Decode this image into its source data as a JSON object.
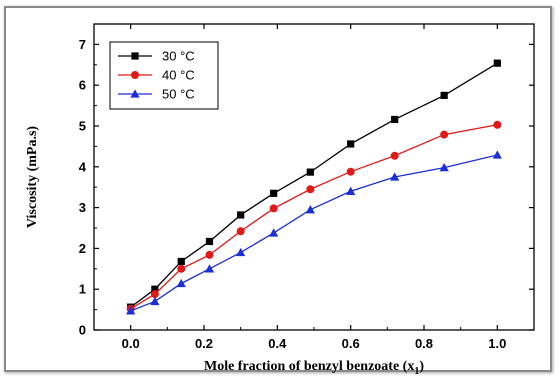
{
  "chart_data": {
    "type": "line",
    "xlabel": "Mole fraction of benzyl benzoate (x",
    "xlabel_sub": "1",
    "xlabel_close": ")",
    "ylabel": "Viscosity (mPa.s)",
    "xlim": [
      -0.1,
      1.1
    ],
    "ylim": [
      0,
      7.5
    ],
    "x_ticks": [
      0.0,
      0.2,
      0.4,
      0.6,
      0.8,
      1.0
    ],
    "x_tick_labels": [
      "0.0",
      "0.2",
      "0.4",
      "0.6",
      "0.8",
      "1.0"
    ],
    "y_ticks": [
      0,
      1,
      2,
      3,
      4,
      5,
      6,
      7
    ],
    "y_tick_labels": [
      "0",
      "1",
      "2",
      "3",
      "4",
      "5",
      "6",
      "7"
    ],
    "grid": false,
    "legend_position": "top-left",
    "series": [
      {
        "name": "30 °C",
        "color": "#000000",
        "marker": "square",
        "x": [
          0.0,
          0.066,
          0.138,
          0.215,
          0.3,
          0.39,
          0.49,
          0.6,
          0.72,
          0.855,
          1.0
        ],
        "y": [
          0.56,
          1.0,
          1.68,
          2.17,
          2.82,
          3.35,
          3.87,
          4.56,
          5.16,
          5.75,
          6.54
        ]
      },
      {
        "name": "40 °C",
        "color": "#e01818",
        "marker": "circle",
        "x": [
          0.0,
          0.066,
          0.138,
          0.215,
          0.3,
          0.39,
          0.49,
          0.6,
          0.72,
          0.855,
          1.0
        ],
        "y": [
          0.52,
          0.88,
          1.5,
          1.84,
          2.42,
          2.98,
          3.45,
          3.88,
          4.27,
          4.79,
          5.03
        ]
      },
      {
        "name": "50 °C",
        "color": "#1a2fd6",
        "marker": "triangle",
        "x": [
          0.0,
          0.066,
          0.138,
          0.215,
          0.3,
          0.39,
          0.49,
          0.6,
          0.72,
          0.855,
          1.0
        ],
        "y": [
          0.47,
          0.7,
          1.14,
          1.5,
          1.9,
          2.38,
          2.95,
          3.4,
          3.75,
          3.98,
          4.29
        ]
      }
    ]
  }
}
